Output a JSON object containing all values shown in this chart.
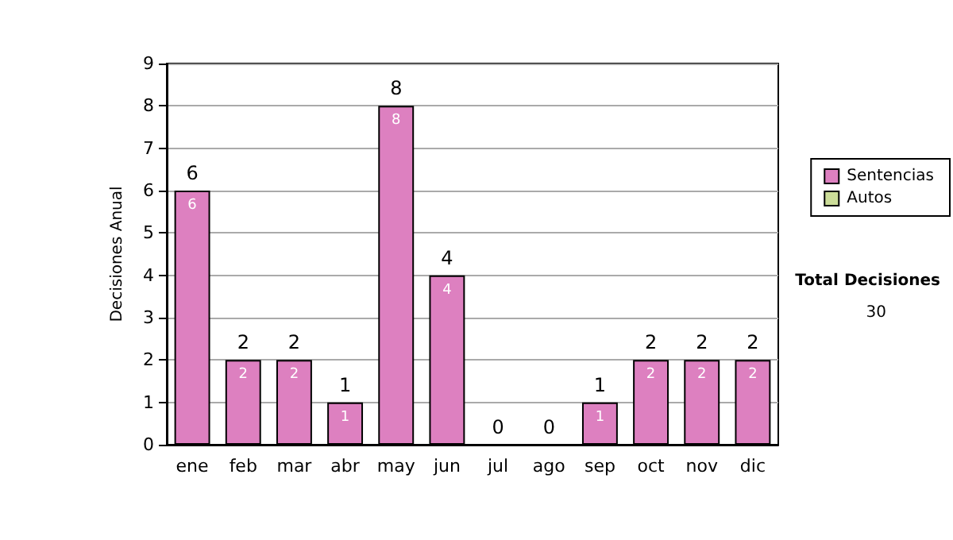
{
  "chart_data": {
    "type": "bar",
    "ylabel": "Decisiones Anual",
    "categories": [
      "ene",
      "feb",
      "mar",
      "abr",
      "may",
      "jun",
      "jul",
      "ago",
      "sep",
      "oct",
      "nov",
      "dic"
    ],
    "series": [
      {
        "name": "Sentencias",
        "color": "#dd80c0",
        "values": [
          6,
          2,
          2,
          1,
          8,
          4,
          0,
          0,
          1,
          2,
          2,
          2
        ],
        "value_labels": [
          "6",
          "2",
          "2",
          "1",
          "8",
          "4",
          null,
          null,
          "1",
          "2",
          "2",
          "2"
        ]
      },
      {
        "name": "Autos",
        "color": "#ccdd99",
        "values": [
          0,
          0,
          0,
          0,
          0,
          0,
          0,
          0,
          0,
          0,
          0,
          0
        ]
      }
    ],
    "stacked": true,
    "totals": [
      "6",
      "2",
      "2",
      "1",
      "8",
      "4",
      "0",
      "0",
      "1",
      "2",
      "2",
      "2"
    ],
    "ylim": [
      0,
      9
    ],
    "yticks": [
      0,
      1,
      2,
      3,
      4,
      5,
      6,
      7,
      8,
      9
    ],
    "grid": "y",
    "legend": "right",
    "annotations": [
      "Total Decisiones",
      "30"
    ]
  }
}
